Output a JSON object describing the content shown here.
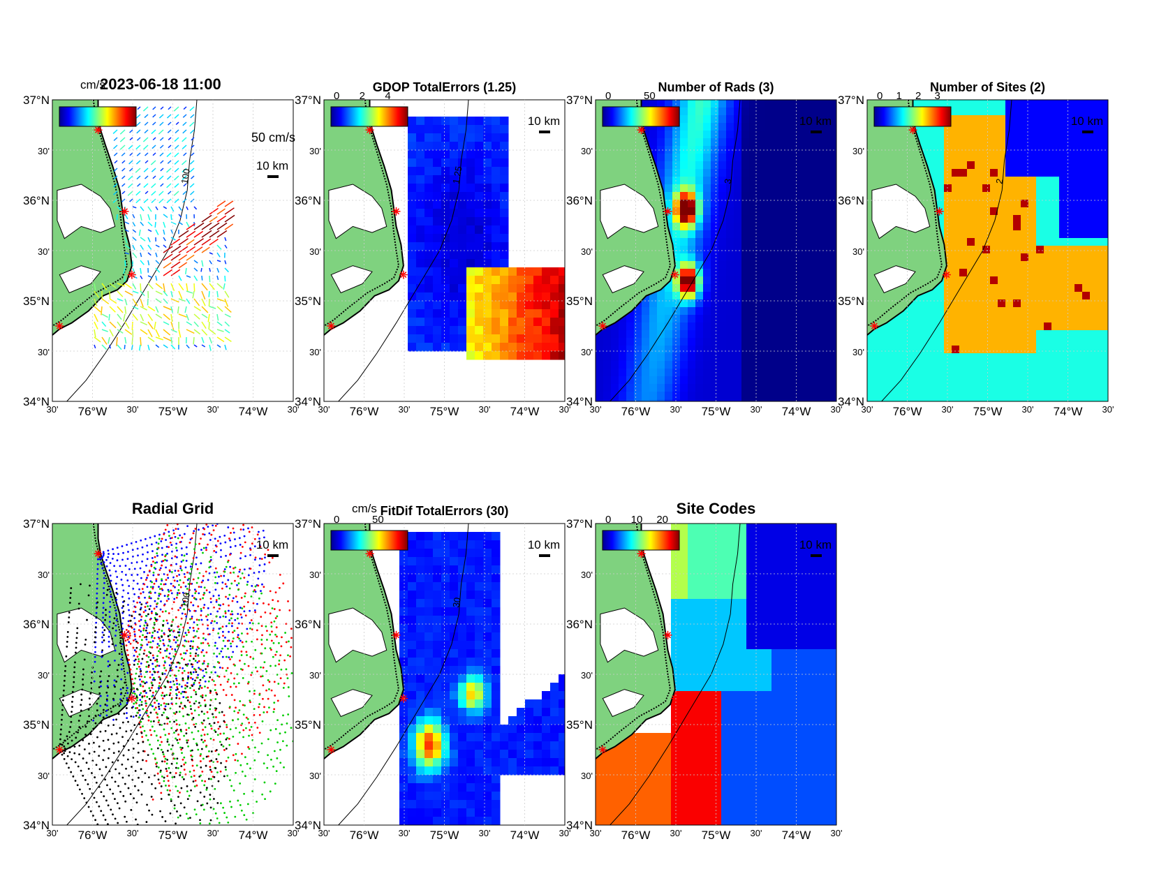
{
  "figure": {
    "timestamp": "2023-06-18 11:00",
    "lat_labels": [
      "37°N",
      "30'",
      "36°N",
      "30'",
      "35°N",
      "30'",
      "34°N"
    ],
    "lon_labels": [
      "30'",
      "76°W",
      "30'",
      "75°W",
      "30'",
      "74°W",
      "30'"
    ],
    "scale_label": "10 km",
    "colors": {
      "land": "#7fd27f",
      "coast": "#000000",
      "site_marker": "#ff0000",
      "grid": "#cccccc"
    },
    "panels": [
      {
        "id": "total-vectors",
        "title": "2023-06-18 11:00",
        "colorbar_unit": "cm/s",
        "colorbar_ticks": [],
        "reference_vector_label": "50 cm/s",
        "contour_label": "100"
      },
      {
        "id": "gdop",
        "title": "GDOP TotalErrors (1.25)",
        "colorbar_unit": "",
        "colorbar_ticks": [
          "0",
          "2",
          "4"
        ],
        "contour_label": "1.25"
      },
      {
        "id": "num-rads",
        "title": "Number of Rads (3)",
        "colorbar_unit": "",
        "colorbar_ticks": [
          "0",
          "50"
        ],
        "contour_label": "3"
      },
      {
        "id": "num-sites",
        "title": "Number of Sites (2)",
        "colorbar_unit": "",
        "colorbar_ticks": [
          "0",
          "1",
          "2",
          "3"
        ],
        "contour_label": "2"
      },
      {
        "id": "radial-grid",
        "title": "Radial Grid",
        "colorbar_unit": "",
        "colorbar_ticks": [],
        "contour_label": "100"
      },
      {
        "id": "fitdif",
        "title": "FitDif TotalErrors (30)",
        "colorbar_unit": "cm/s",
        "colorbar_ticks": [
          "0",
          "50"
        ],
        "contour_label": "30"
      },
      {
        "id": "site-codes",
        "title": "Site Codes",
        "colorbar_unit": "",
        "colorbar_ticks": [
          "0",
          "10",
          "20"
        ],
        "contour_label": ""
      }
    ]
  }
}
